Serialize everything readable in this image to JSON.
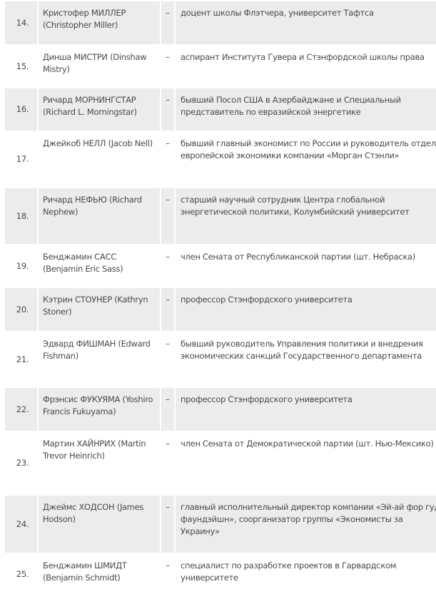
{
  "rows": [
    {
      "num": "14.",
      "name": "Кристофер МИЛЛЕР (Christopher Miller)",
      "dash": "–",
      "desc": "доцент школы Флэтчера, университет Тафтса"
    },
    {
      "num": "15.",
      "name": "Динша МИСТРИ (Dinshaw Mistry)",
      "dash": "–",
      "desc": "аспирант Института Гувера и Стэнфордской школы права"
    },
    {
      "num": "16.",
      "name": "Ричард МОРНИНГСТАР (Richard L. Morningstar)",
      "dash": "–",
      "desc": "бывший Посол США в Азербайджане и Специальный представитель по евразийской энергетике"
    },
    {
      "num": "17.",
      "name": "Джейкоб НЕЛЛ (Jacob Nell)",
      "dash": "–",
      "desc": "бывший главный экономист по России и руководитель отдела европейской экономики компании «Морган Стэнли»"
    },
    {
      "num": "18.",
      "name": "Ричард НЕФЬЮ (Richard Nephew)",
      "dash": "–",
      "desc": "старший научный сотрудник Центра глобальной энергетической политики, Колумбийский университет"
    },
    {
      "num": "19.",
      "name": "Бенджамин САСС (Benjamin Eric Sass)",
      "dash": "–",
      "desc": "член Сената от Республиканской партии (шт. Небраска)"
    },
    {
      "num": "20.",
      "name": "Кэтрин СТОУНЕР (Kathryn Stoner)",
      "dash": "–",
      "desc": "профессор Стэнфордского университета"
    },
    {
      "num": "21.",
      "name": "Эдвард ФИШМАН (Edward Fishman)",
      "dash": "–",
      "desc": "бывший руководитель Управления политики и внедрения экономических санкций Государственного департамента"
    },
    {
      "num": "22.",
      "name": "Фрэнсис ФУКУЯМА (Yoshiro Francis Fukuyama)",
      "dash": "–",
      "desc": "профессор Стэнфордского университета"
    },
    {
      "num": "23.",
      "name": "Мартин ХАЙНРИХ (Martin Trevor Heinrich)",
      "dash": "–",
      "desc": "член Сената от Демократической партии (шт. Нью-Мексико)"
    },
    {
      "num": "24.",
      "name": "Джеймс ХОДСОН (James Hodson)",
      "dash": "–",
      "desc": "главный исполнительный директор компании «Эй-ай фор гуд фаундэйшн», соорганизатор группы «Экономисты за Украину»"
    },
    {
      "num": "25.",
      "name": "Бенджамин ШМИДТ (Benjamin Schmidt)",
      "dash": "–",
      "desc": "специалист по разработке проектов в Гарвардском университете"
    }
  ],
  "colors": {
    "row_alt": "#ececec",
    "text": "#4a4a4a"
  }
}
